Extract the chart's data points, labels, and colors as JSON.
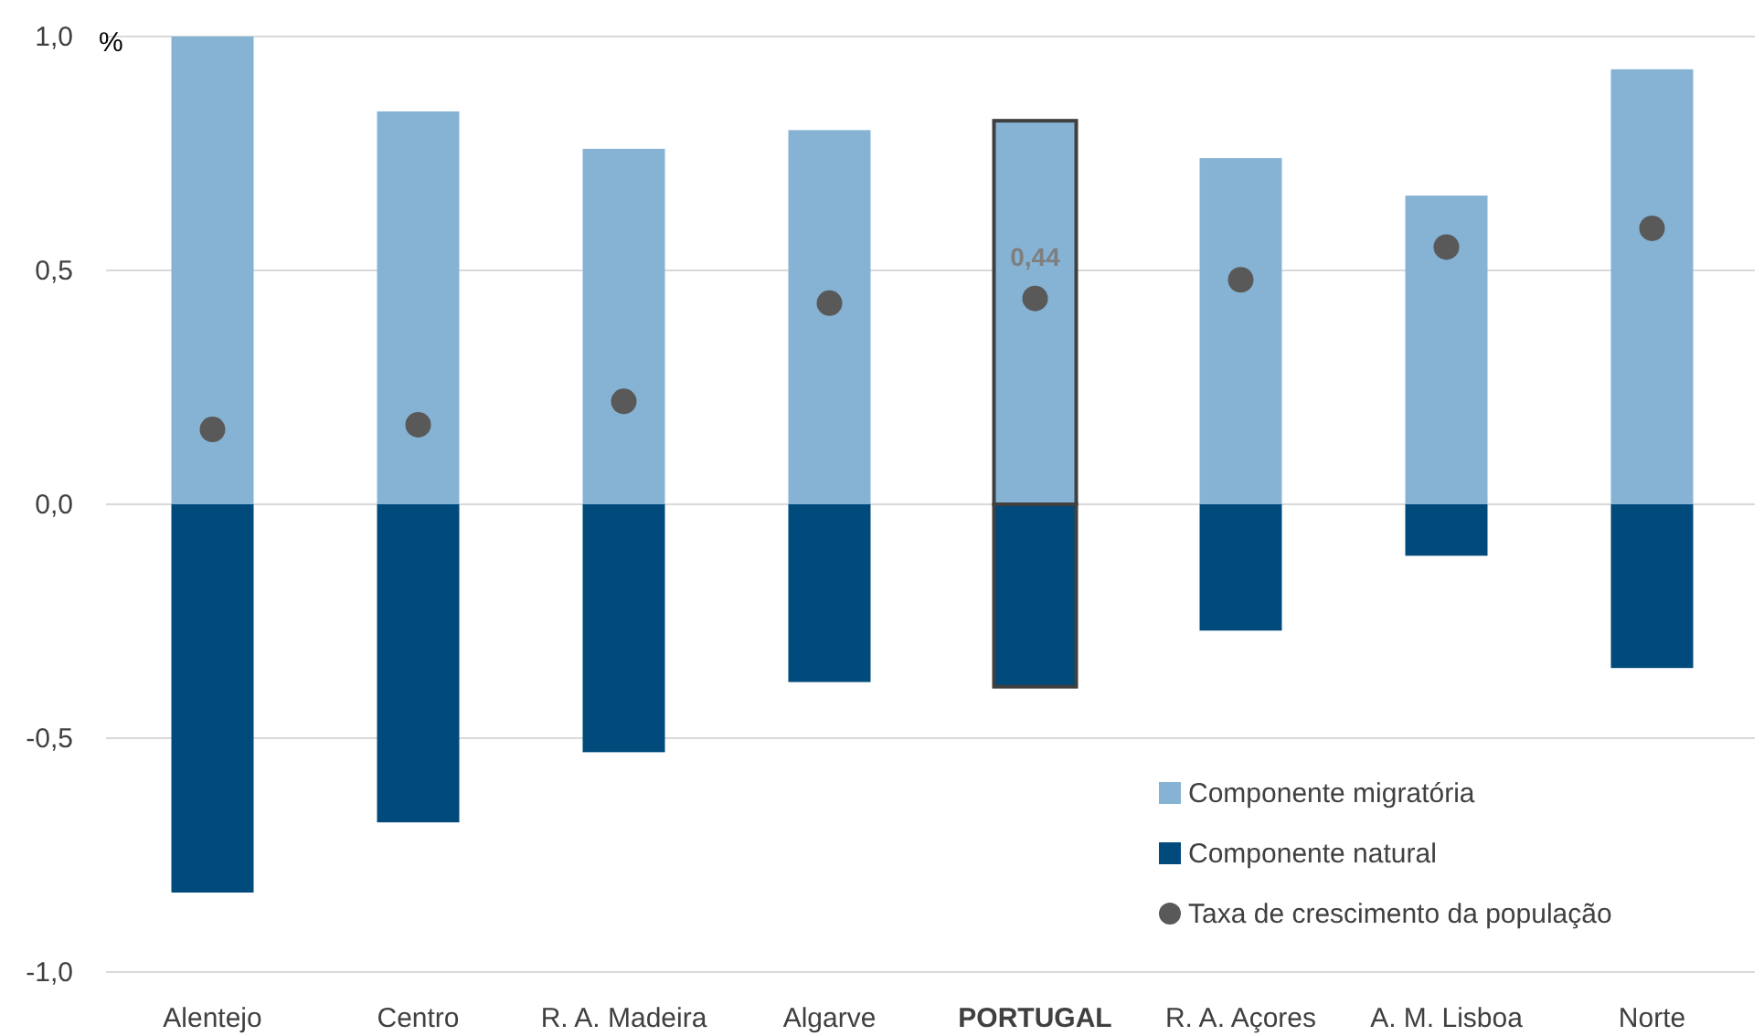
{
  "chart_data": {
    "type": "bar",
    "stacked": true,
    "ylabel": "%",
    "categories": [
      "Alentejo",
      "Centro",
      "R. A. Madeira",
      "Algarve",
      "PORTUGAL",
      "R. A. Açores",
      "A. M. Lisboa",
      "Norte"
    ],
    "series": [
      {
        "name": "Componente migratória",
        "color": "#86b3d3",
        "values": [
          1.0,
          0.84,
          0.76,
          0.8,
          0.82,
          0.74,
          0.66,
          0.93
        ]
      },
      {
        "name": "Componente natural",
        "color": "#004a7c",
        "values": [
          -0.83,
          -0.68,
          -0.53,
          -0.38,
          -0.39,
          -0.27,
          -0.11,
          -0.35
        ]
      },
      {
        "name": "Taxa de crescimento da população",
        "type": "scatter",
        "color": "#595959",
        "values": [
          0.16,
          0.17,
          0.22,
          0.43,
          0.44,
          0.48,
          0.55,
          0.59
        ],
        "value_labels": [
          null,
          null,
          null,
          null,
          "0,44",
          null,
          null,
          null
        ]
      }
    ],
    "ylim": [
      -1,
      1
    ],
    "yticks": [
      {
        "value": -1,
        "label": "-1,0"
      },
      {
        "value": -0.5,
        "label": "-0,5"
      },
      {
        "value": 0,
        "label": "0,0"
      },
      {
        "value": 0.5,
        "label": "0,5"
      },
      {
        "value": 1,
        "label": "1,0"
      }
    ],
    "grid": "y",
    "legend": "bottom right",
    "marker": "circle"
  }
}
